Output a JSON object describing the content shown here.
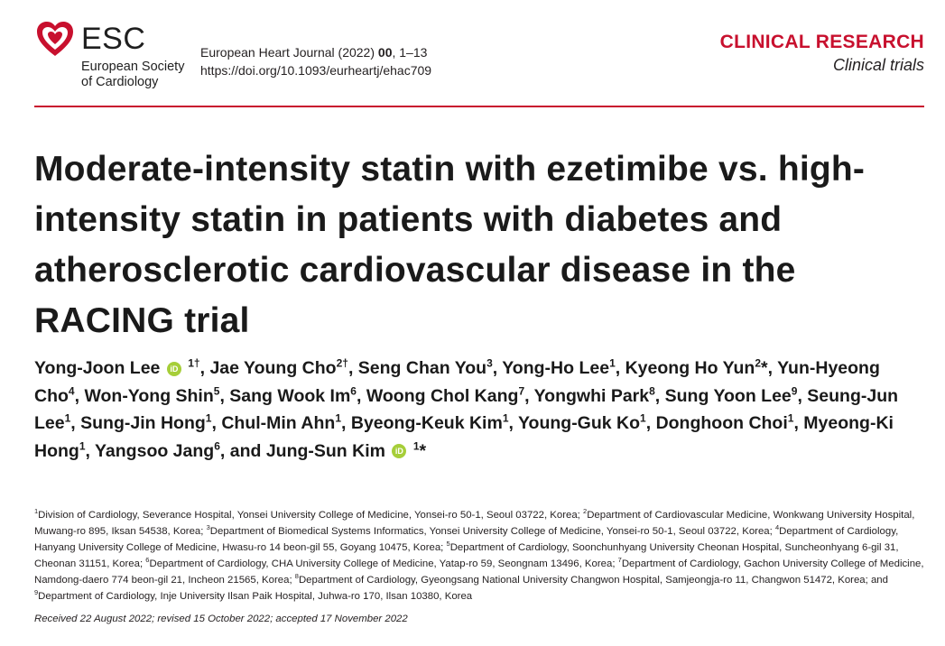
{
  "header": {
    "logo_abbrev": "ESC",
    "logo_line1": "European Society",
    "logo_line2": "of Cardiology",
    "journal_name": "European Heart Journal (2022) ",
    "journal_volume": "00",
    "journal_pages": ", 1–13",
    "doi": "https://doi.org/10.1093/eurheartj/ehac709",
    "category": "CLINICAL RESEARCH",
    "subcategory": "Clinical trials"
  },
  "title": "Moderate-intensity statin with ezetimibe vs. high-intensity statin in patients with diabetes and atherosclerotic cardiovascular disease in the RACING trial",
  "authors": [
    {
      "name": "Yong-Joon Lee",
      "orcid": true,
      "sup": "1†",
      "sep": ", "
    },
    {
      "name": "Jae Young Cho",
      "orcid": false,
      "sup": "2†",
      "sep": ", "
    },
    {
      "name": "Seng Chan You",
      "orcid": false,
      "sup": "3",
      "sep": ", "
    },
    {
      "name": "Yong-Ho Lee",
      "orcid": false,
      "sup": "1",
      "sep": ", "
    },
    {
      "name": "Kyeong Ho Yun",
      "orcid": false,
      "sup": "2",
      "star": "*",
      "sep": ", "
    },
    {
      "name": "Yun-Hyeong Cho",
      "orcid": false,
      "sup": "4",
      "sep": ", "
    },
    {
      "name": "Won-Yong Shin",
      "orcid": false,
      "sup": "5",
      "sep": ", "
    },
    {
      "name": "Sang Wook Im",
      "orcid": false,
      "sup": "6",
      "sep": ", "
    },
    {
      "name": "Woong Chol Kang",
      "orcid": false,
      "sup": "7",
      "sep": ", "
    },
    {
      "name": "Yongwhi Park",
      "orcid": false,
      "sup": "8",
      "sep": ", "
    },
    {
      "name": "Sung Yoon Lee",
      "orcid": false,
      "sup": "9",
      "sep": ", "
    },
    {
      "name": "Seung-Jun Lee",
      "orcid": false,
      "sup": "1",
      "sep": ", "
    },
    {
      "name": "Sung-Jin Hong",
      "orcid": false,
      "sup": "1",
      "sep": ", "
    },
    {
      "name": "Chul-Min Ahn",
      "orcid": false,
      "sup": "1",
      "sep": ", "
    },
    {
      "name": "Byeong-Keuk Kim",
      "orcid": false,
      "sup": "1",
      "sep": ", "
    },
    {
      "name": "Young-Guk Ko",
      "orcid": false,
      "sup": "1",
      "sep": ", "
    },
    {
      "name": "Donghoon Choi",
      "orcid": false,
      "sup": "1",
      "sep": ", "
    },
    {
      "name": "Myeong-Ki Hong",
      "orcid": false,
      "sup": "1",
      "sep": ", "
    },
    {
      "name": "Yangsoo Jang",
      "orcid": false,
      "sup": "6",
      "sep": ", and "
    },
    {
      "name": "Jung-Sun Kim",
      "orcid": true,
      "sup": "1",
      "star": "*",
      "sep": ""
    }
  ],
  "affiliations": [
    {
      "n": "1",
      "text": "Division of Cardiology, Severance Hospital, Yonsei University College of Medicine, Yonsei-ro 50-1, Seoul 03722, Korea; "
    },
    {
      "n": "2",
      "text": "Department of Cardiovascular Medicine, Wonkwang University Hospital, Muwang-ro 895, Iksan 54538, Korea; "
    },
    {
      "n": "3",
      "text": "Department of Biomedical Systems Informatics, Yonsei University College of Medicine, Yonsei-ro 50-1, Seoul 03722, Korea; "
    },
    {
      "n": "4",
      "text": "Department of Cardiology, Hanyang University College of Medicine, Hwasu-ro 14 beon-gil 55, Goyang 10475, Korea; "
    },
    {
      "n": "5",
      "text": "Department of Cardiology, Soonchunhyang University Cheonan Hospital, Suncheonhyang 6-gil 31, Cheonan 31151, Korea; "
    },
    {
      "n": "6",
      "text": "Department of Cardiology, CHA University College of Medicine, Yatap-ro 59, Seongnam 13496, Korea; "
    },
    {
      "n": "7",
      "text": "Department of Cardiology, Gachon University College of Medicine, Namdong-daero 774 beon-gil 21, Incheon 21565, Korea; "
    },
    {
      "n": "8",
      "text": "Department of Cardiology, Gyeongsang National University Changwon Hospital, Samjeongja-ro 11, Changwon 51472, Korea; and "
    },
    {
      "n": "9",
      "text": "Department of Cardiology, Inje University Ilsan Paik Hospital, Juhwa-ro 170, Ilsan 10380, Korea"
    }
  ],
  "received": "Received 22 August 2022; revised 15 October 2022; accepted 17 November 2022",
  "colors": {
    "accent": "#c8102e",
    "orcid": "#a6ce39"
  }
}
